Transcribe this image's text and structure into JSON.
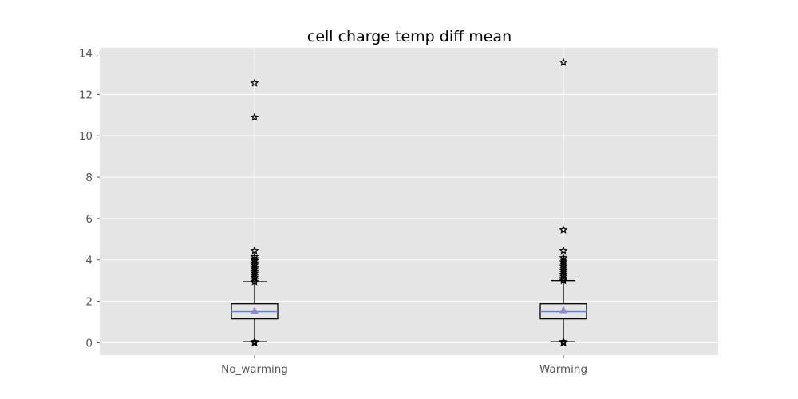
{
  "chart_data": {
    "type": "box",
    "title": "cell charge temp diff mean",
    "xlabel": "",
    "ylabel": "",
    "ylim": [
      -0.6,
      14.25
    ],
    "yticks": [
      0,
      2,
      4,
      6,
      8,
      10,
      12,
      14
    ],
    "grid": true,
    "categories": [
      "No_warming",
      "Warming"
    ],
    "boxes": [
      {
        "category": "No_warming",
        "whisker_low": 0.05,
        "q1": 1.15,
        "median": 1.5,
        "mean": 1.55,
        "q3": 1.88,
        "whisker_high": 2.95,
        "outliers": [
          0.0,
          0.02,
          0.05,
          2.95,
          3.05,
          3.15,
          3.25,
          3.35,
          3.45,
          3.55,
          3.65,
          3.75,
          3.85,
          3.95,
          4.05,
          4.15,
          4.45,
          10.9,
          12.55
        ]
      },
      {
        "category": "Warming",
        "whisker_low": 0.05,
        "q1": 1.15,
        "median": 1.5,
        "mean": 1.58,
        "q3": 1.88,
        "whisker_high": 3.0,
        "outliers": [
          0.0,
          0.02,
          0.05,
          3.0,
          3.1,
          3.2,
          3.3,
          3.4,
          3.5,
          3.6,
          3.7,
          3.8,
          3.9,
          4.0,
          4.1,
          4.45,
          5.45,
          13.55
        ]
      }
    ],
    "colors": {
      "background": "#e5e5e5",
      "grid": "#ffffff",
      "box": "#000000",
      "median": "#5b7fc7",
      "mean": "#9488cc",
      "tick_text": "#555555"
    }
  }
}
